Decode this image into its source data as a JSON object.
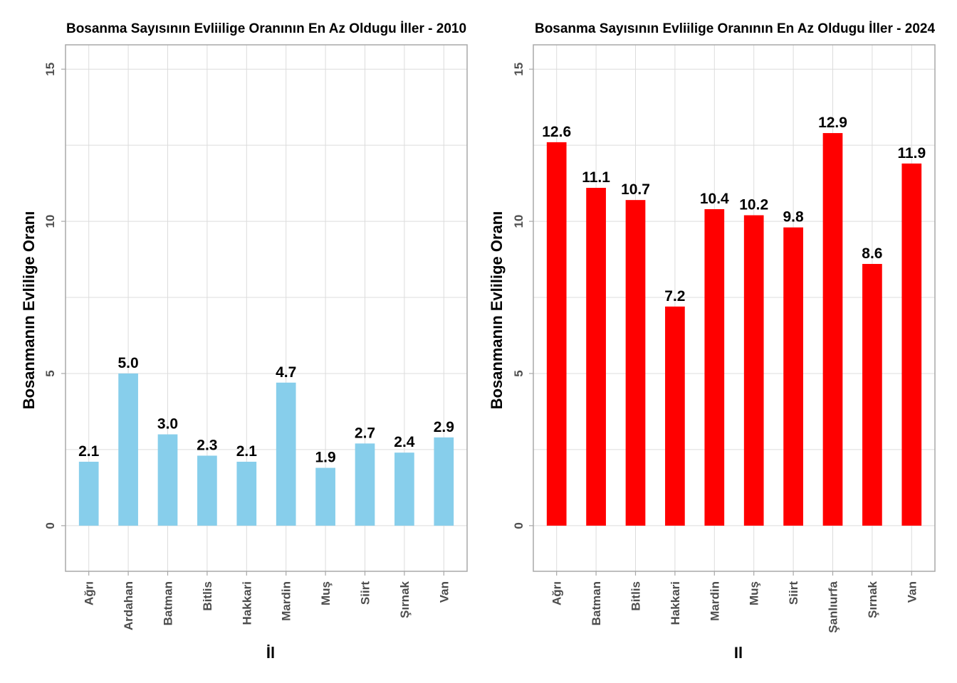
{
  "chart_data": [
    {
      "type": "bar",
      "title": "Bosanma Sayısının Evliilige Oranının En Az Oldugu İller - 2010",
      "xlabel": "İl",
      "ylabel": "Bosanmanın Evlilige Oranı",
      "categories": [
        "Ağrı",
        "Ardahan",
        "Batman",
        "Bitlis",
        "Hakkari",
        "Mardin",
        "Muş",
        "Siirt",
        "Şırnak",
        "Van"
      ],
      "values": [
        2.1,
        5.0,
        3.0,
        2.3,
        2.1,
        4.7,
        1.9,
        2.7,
        2.4,
        2.9
      ],
      "value_labels": [
        "2.1",
        "5.0",
        "3.0",
        "2.3",
        "2.1",
        "4.7",
        "1.9",
        "2.7",
        "2.4",
        "2.9"
      ],
      "ylim": [
        -1.5,
        15.8
      ],
      "yticks": [
        0,
        5,
        10,
        15
      ],
      "ytick_labels": [
        "0",
        "5",
        "10",
        "15"
      ],
      "bar_color": "#87ceeb",
      "grid": true,
      "legend": "none"
    },
    {
      "type": "bar",
      "title": "Bosanma Sayısının Evliilige Oranının En Az Oldugu İller - 2024",
      "xlabel": "Il",
      "ylabel": "Bosanmanın Evlilige Oranı",
      "categories": [
        "Ağrı",
        "Batman",
        "Bitlis",
        "Hakkari",
        "Mardin",
        "Muş",
        "Siirt",
        "Şanlıurfa",
        "Şırnak",
        "Van"
      ],
      "values": [
        12.6,
        11.1,
        10.7,
        7.2,
        10.4,
        10.2,
        9.8,
        12.9,
        8.6,
        11.9
      ],
      "value_labels": [
        "12.6",
        "11.1",
        "10.7",
        "7.2",
        "10.4",
        "10.2",
        "9.8",
        "12.9",
        "8.6",
        "11.9"
      ],
      "ylim": [
        -1.5,
        15.8
      ],
      "yticks": [
        0,
        5,
        10,
        15
      ],
      "ytick_labels": [
        "0",
        "5",
        "10",
        "15"
      ],
      "bar_color": "#ff0000",
      "grid": true,
      "legend": "none"
    }
  ]
}
